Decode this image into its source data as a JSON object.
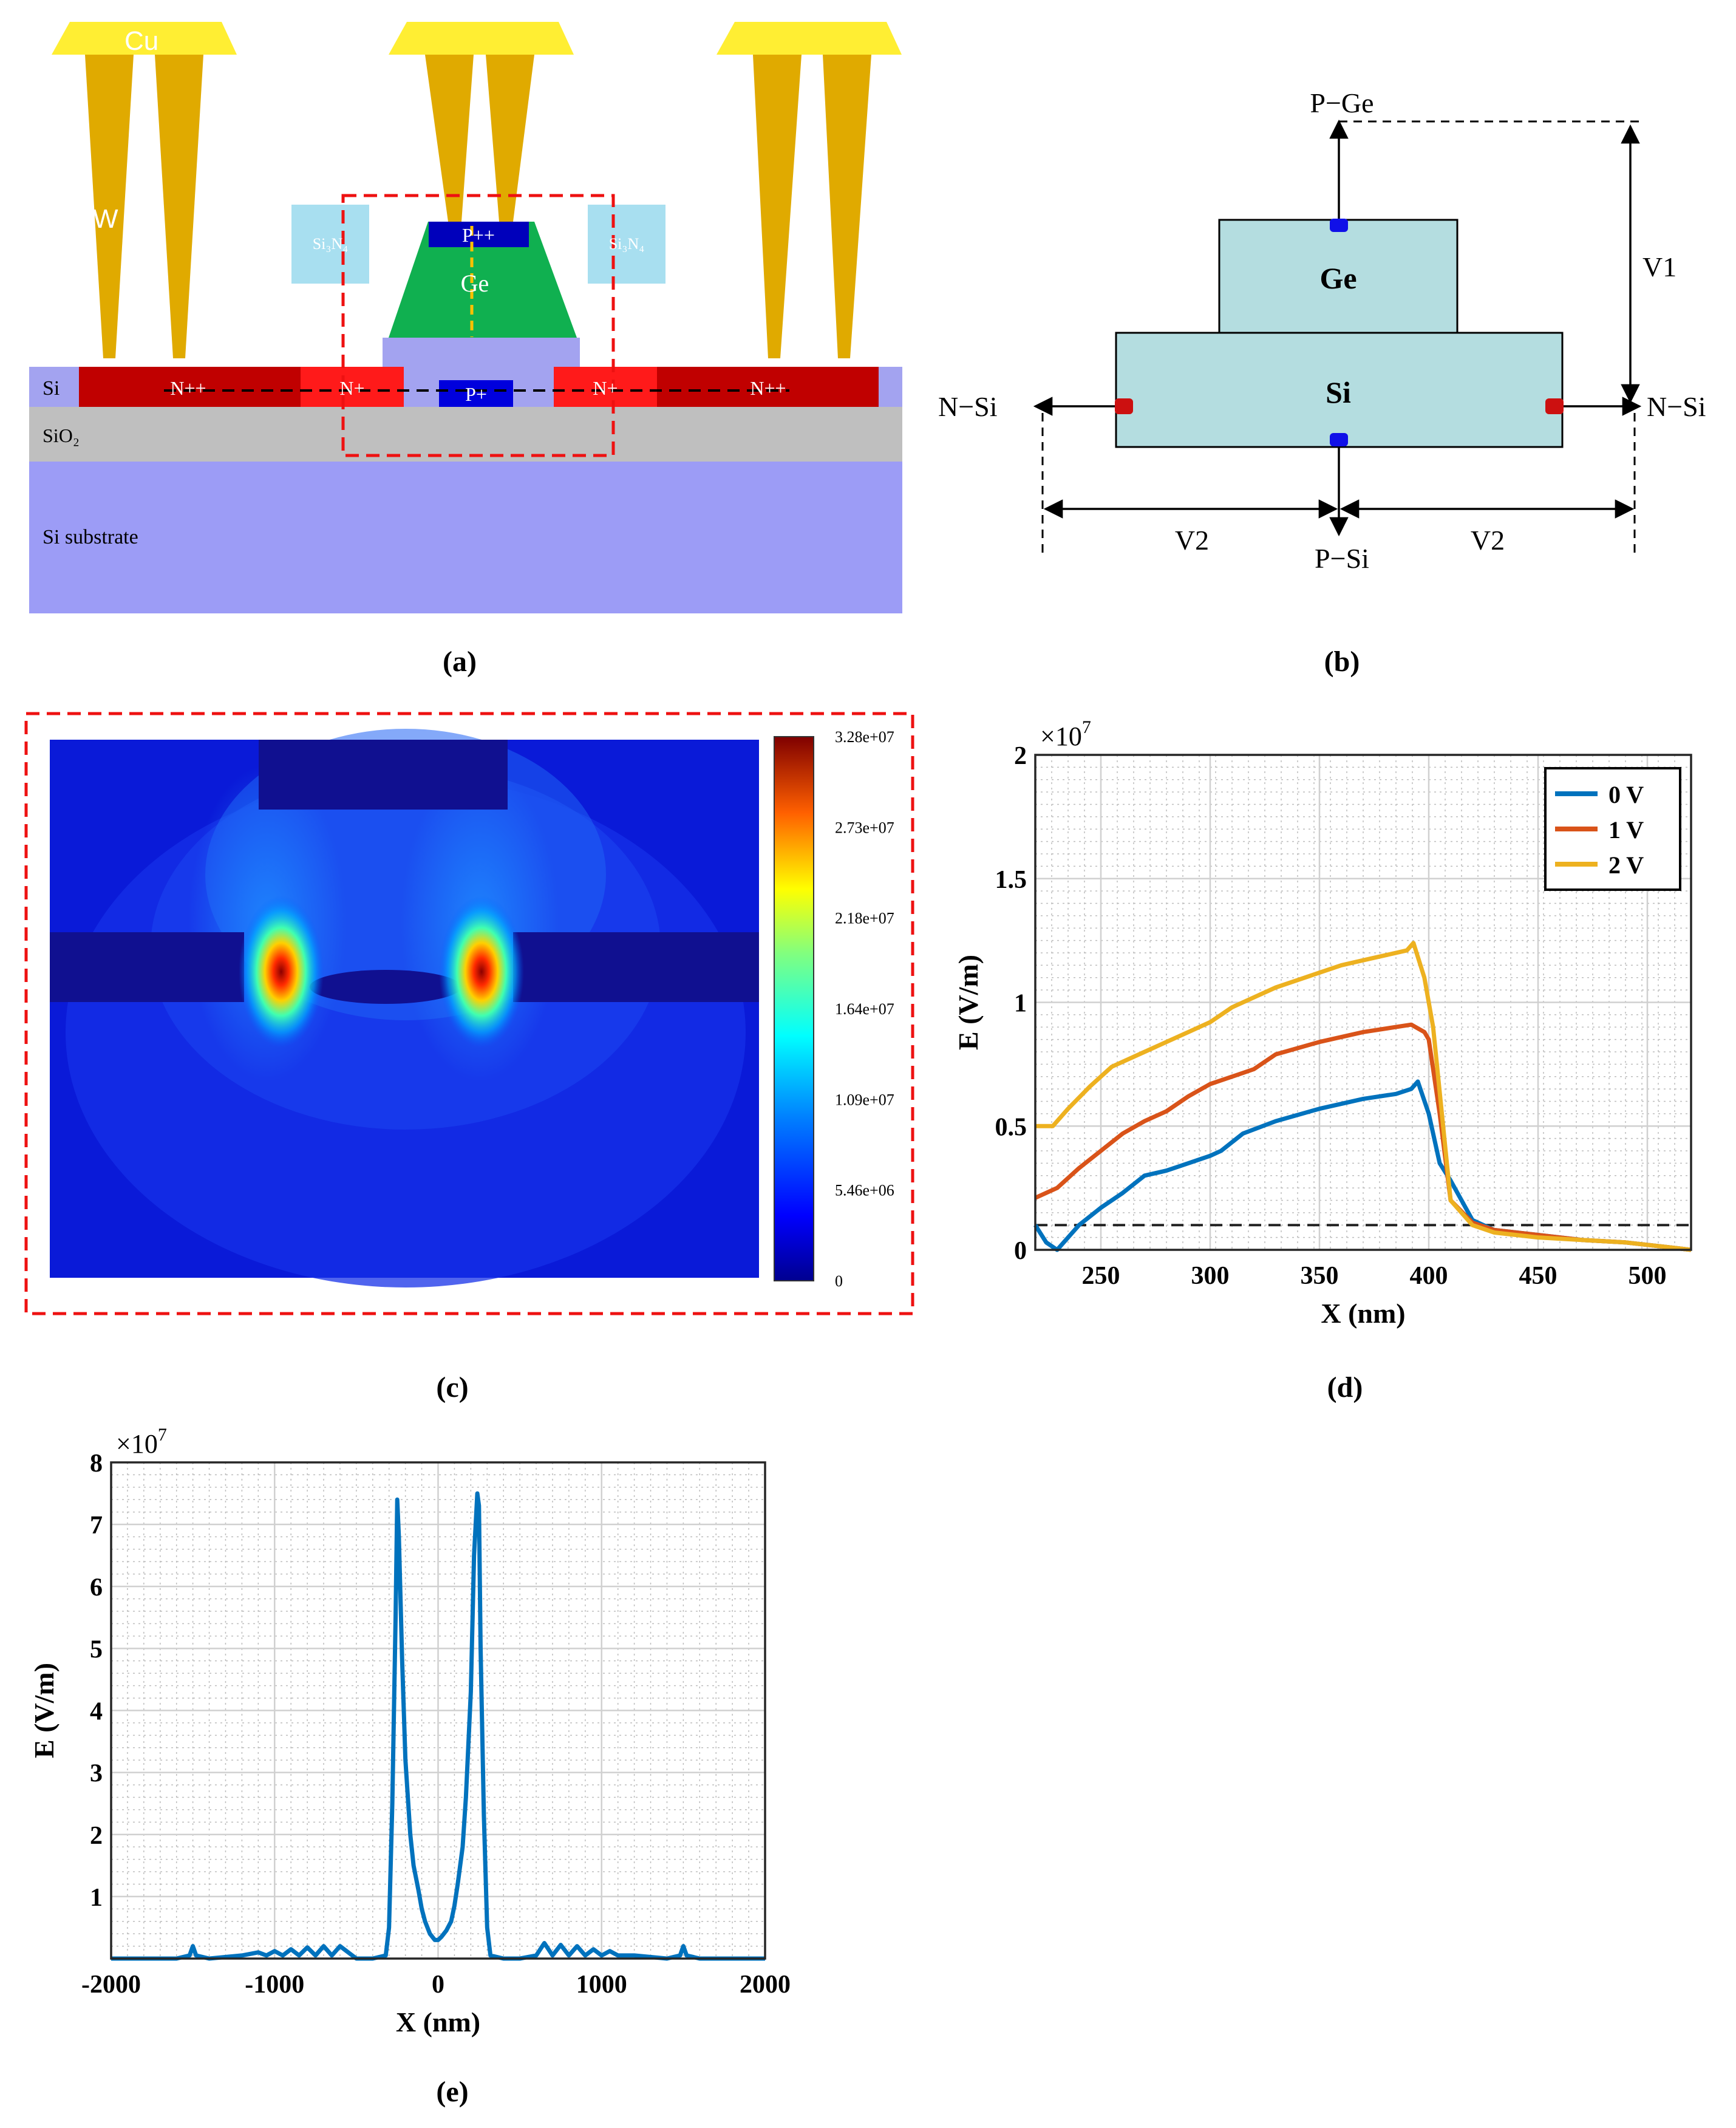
{
  "panels": {
    "a": {
      "caption": "(a)",
      "labels": {
        "cu": "Cu",
        "w": "W",
        "si3n4_left": "Si₃N₄",
        "si3n4_right": "Si₃N₄",
        "ppp": "P++",
        "ge": "Ge",
        "si": "Si",
        "np_left": "N++",
        "n_left": "N+",
        "p": "P+",
        "n_right": "N+",
        "np_right": "N++",
        "sio2": "SiO₂",
        "substrate": "Si substrate"
      }
    },
    "b": {
      "caption": "(b)",
      "labels": {
        "pge": "P−Ge",
        "ge": "Ge",
        "si": "Si",
        "v1": "V1",
        "nsi_left": "N−Si",
        "nsi_right": "N−Si",
        "v2_left": "V2",
        "v2_right": "V2",
        "psi": "P−Si"
      }
    },
    "c": {
      "caption": "(c)",
      "colorbar_ticks": [
        "3.28e+07",
        "2.73e+07",
        "2.18e+07",
        "1.64e+07",
        "1.09e+07",
        "5.46e+06",
        "0"
      ]
    },
    "d": {
      "caption": "(d)"
    },
    "e": {
      "caption": "(e)"
    }
  },
  "chart_data": [
    {
      "id": "d",
      "type": "line",
      "xlabel": "X (nm)",
      "ylabel": "E (V/m)",
      "exponent": "×10",
      "exponent_power": "7",
      "xlim": [
        220,
        520
      ],
      "ylim": [
        0,
        2
      ],
      "xticks": [
        250,
        300,
        350,
        400,
        450,
        500
      ],
      "yticks": [
        0,
        0.5,
        1,
        1.5,
        2
      ],
      "xtick_labels": [
        "250",
        "300",
        "350",
        "400",
        "450",
        "500"
      ],
      "ytick_labels": [
        "0",
        "0.5",
        "1",
        "1.5",
        "2"
      ],
      "threshold": 0.1,
      "legend": [
        "0 V",
        "1 V",
        "2 V"
      ],
      "series": [
        {
          "name": "0 V",
          "color": "#0072BD",
          "x": [
            220,
            225,
            230,
            240,
            250,
            260,
            270,
            280,
            290,
            300,
            305,
            315,
            330,
            350,
            370,
            385,
            392,
            395,
            400,
            405,
            410,
            420,
            430,
            450,
            470,
            490,
            500,
            510,
            520
          ],
          "y": [
            0.1,
            0.03,
            0.0,
            0.1,
            0.17,
            0.23,
            0.3,
            0.32,
            0.35,
            0.38,
            0.4,
            0.47,
            0.52,
            0.57,
            0.61,
            0.63,
            0.65,
            0.68,
            0.55,
            0.35,
            0.28,
            0.12,
            0.08,
            0.06,
            0.04,
            0.03,
            0.02,
            0.01,
            0.0
          ]
        },
        {
          "name": "1 V",
          "color": "#D95319",
          "x": [
            220,
            230,
            240,
            250,
            260,
            270,
            280,
            290,
            300,
            310,
            320,
            330,
            350,
            370,
            392,
            398,
            400,
            405,
            410,
            420,
            430,
            450,
            470,
            490,
            500,
            510,
            520
          ],
          "y": [
            0.21,
            0.25,
            0.33,
            0.4,
            0.47,
            0.52,
            0.56,
            0.62,
            0.67,
            0.7,
            0.73,
            0.79,
            0.84,
            0.88,
            0.91,
            0.88,
            0.85,
            0.55,
            0.2,
            0.11,
            0.08,
            0.06,
            0.04,
            0.03,
            0.02,
            0.01,
            0.0
          ]
        },
        {
          "name": "2 V",
          "color": "#EDB120",
          "x": [
            220,
            228,
            235,
            245,
            255,
            260,
            270,
            280,
            290,
            300,
            310,
            320,
            330,
            340,
            350,
            360,
            370,
            380,
            390,
            393,
            398,
            402,
            406,
            410,
            420,
            430,
            450,
            470,
            490,
            500,
            510,
            520
          ],
          "y": [
            0.5,
            0.5,
            0.57,
            0.66,
            0.74,
            0.76,
            0.8,
            0.84,
            0.88,
            0.92,
            0.98,
            1.02,
            1.06,
            1.09,
            1.12,
            1.15,
            1.17,
            1.19,
            1.21,
            1.24,
            1.1,
            0.9,
            0.55,
            0.2,
            0.1,
            0.07,
            0.05,
            0.04,
            0.03,
            0.02,
            0.01,
            0.0
          ]
        }
      ]
    },
    {
      "id": "e",
      "type": "line",
      "xlabel": "X (nm)",
      "ylabel": "E (V/m)",
      "exponent": "×10",
      "exponent_power": "7",
      "xlim": [
        -2000,
        2000
      ],
      "ylim": [
        0,
        8
      ],
      "xticks": [
        -2000,
        -1000,
        0,
        1000,
        2000
      ],
      "yticks": [
        1,
        2,
        3,
        4,
        5,
        6,
        7,
        8
      ],
      "xtick_labels": [
        "-2000",
        "-1000",
        "0",
        "1000",
        "2000"
      ],
      "ytick_labels": [
        "1",
        "2",
        "3",
        "4",
        "5",
        "6",
        "7",
        "8"
      ],
      "series": [
        {
          "name": "E",
          "color": "#0072BD",
          "x": [
            -2000,
            -1600,
            -1520,
            -1500,
            -1480,
            -1400,
            -1200,
            -1100,
            -1050,
            -1000,
            -950,
            -900,
            -850,
            -800,
            -750,
            -700,
            -650,
            -600,
            -500,
            -400,
            -320,
            -300,
            -280,
            -260,
            -250,
            -240,
            -220,
            -200,
            -170,
            -150,
            -120,
            -100,
            -80,
            -50,
            -20,
            0,
            20,
            50,
            80,
            100,
            120,
            150,
            170,
            200,
            220,
            240,
            250,
            260,
            280,
            300,
            320,
            400,
            500,
            600,
            650,
            700,
            750,
            800,
            850,
            900,
            950,
            1000,
            1050,
            1100,
            1200,
            1400,
            1480,
            1500,
            1520,
            1600,
            2000
          ],
          "y": [
            0,
            0,
            0.05,
            0.2,
            0.05,
            0,
            0.05,
            0.1,
            0.05,
            0.12,
            0.05,
            0.15,
            0.05,
            0.18,
            0.05,
            0.2,
            0.05,
            0.2,
            0,
            0,
            0.05,
            0.5,
            2.5,
            5.5,
            7.4,
            6.8,
            4.8,
            3.2,
            2,
            1.5,
            1.1,
            0.8,
            0.6,
            0.4,
            0.3,
            0.3,
            0.35,
            0.45,
            0.6,
            0.85,
            1.2,
            1.8,
            2.6,
            4.3,
            6.5,
            7.5,
            7.3,
            5,
            2.3,
            0.5,
            0.05,
            0,
            0,
            0.05,
            0.25,
            0.05,
            0.22,
            0.05,
            0.2,
            0.05,
            0.15,
            0.05,
            0.12,
            0.05,
            0.05,
            0,
            0.05,
            0.2,
            0.05,
            0,
            0
          ]
        }
      ]
    }
  ]
}
